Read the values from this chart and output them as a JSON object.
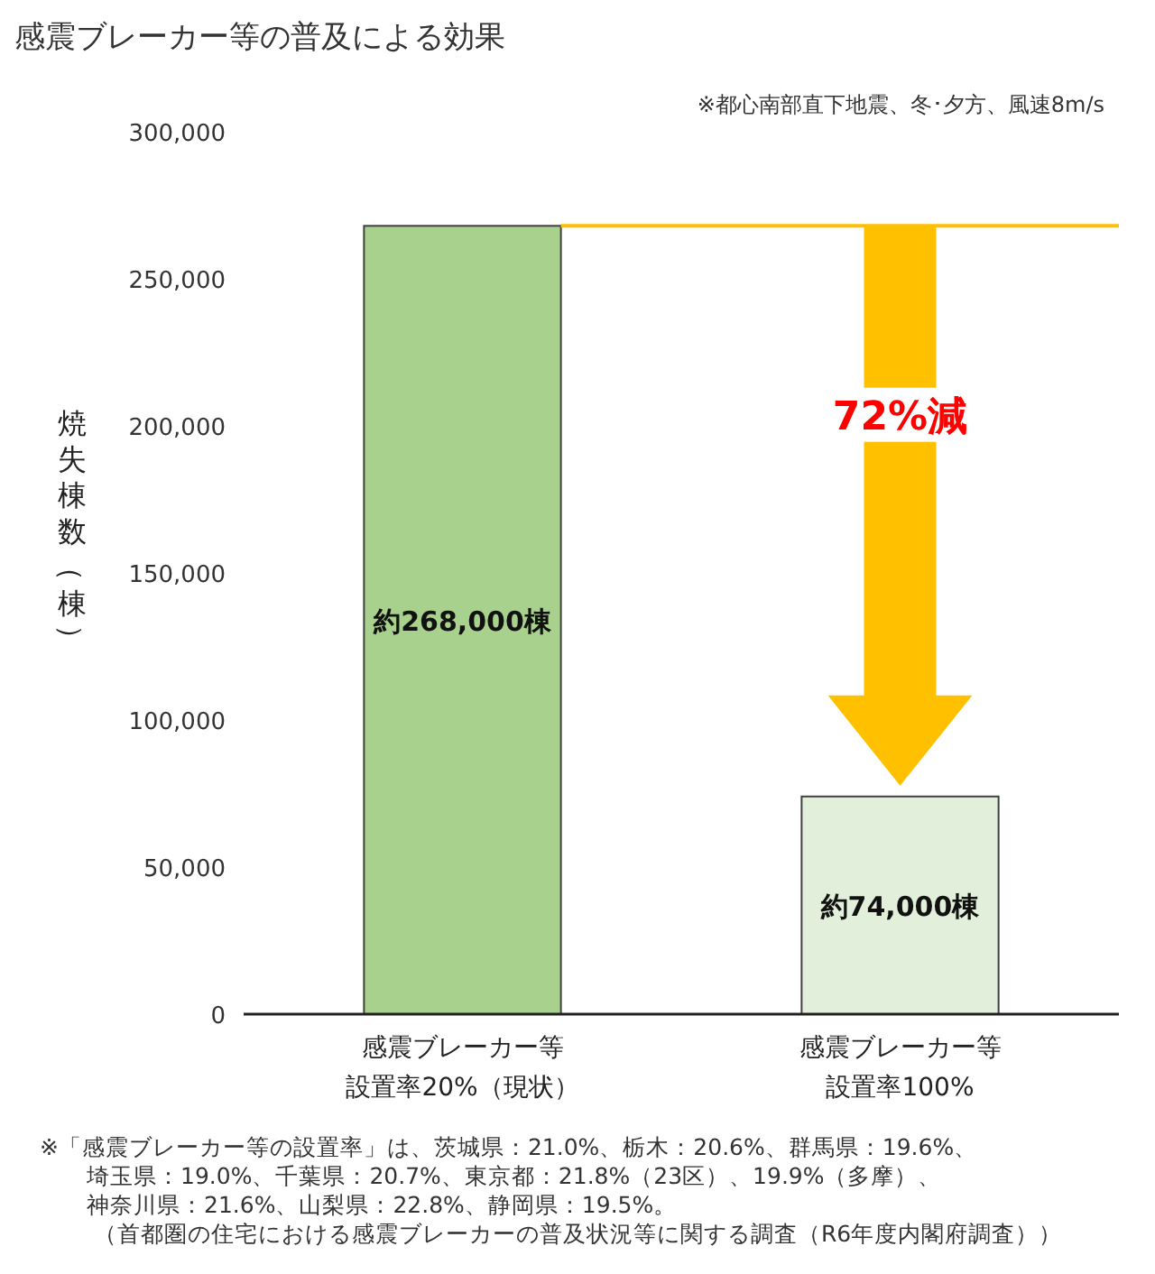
{
  "chart_data": {
    "type": "bar",
    "title": "感震ブレーカー等の普及による効果",
    "ylabel": "焼失棟数（棟）",
    "categories": [
      "感震ブレーカー等設置率20%（現状）",
      "感震ブレーカー等設置率100%"
    ],
    "values": [
      268000,
      74000
    ],
    "colors": [
      "#a9d18e",
      "#e2efda"
    ],
    "value_labels": [
      "約268,000棟",
      "約74,000棟"
    ],
    "ylim": [
      0,
      300000
    ],
    "yticks": [
      {
        "value": 0,
        "label": "0"
      },
      {
        "value": 50000,
        "label": "50,000"
      },
      {
        "value": 100000,
        "label": "100,000"
      },
      {
        "value": 150000,
        "label": "150,000"
      },
      {
        "value": 200000,
        "label": "200,000"
      },
      {
        "value": 250000,
        "label": "250,000"
      },
      {
        "value": 300000,
        "label": "300,000"
      }
    ],
    "ref_lines": [
      {
        "axis": "y",
        "value": 268000,
        "color": "#ffc000"
      }
    ],
    "annotations": [
      "72%減",
      "※都心南部直下地震、冬･夕方、風速8m/s",
      "※「感震ブレーカー等の設置率」は、茨城県：21.0%、栃木：20.6%、群馬県：19.6%、埼玉県：19.0%、千葉県：20.7%、東京都：21.8%（23区）、19.9%（多摩）、神奈川県：21.6%、山梨県：22.8%、静岡県：19.5%。",
      "（首都圏の住宅における感震ブレーカーの普及状況等に関する調査（R6年度内閣府調査））"
    ],
    "grid": false
  }
}
